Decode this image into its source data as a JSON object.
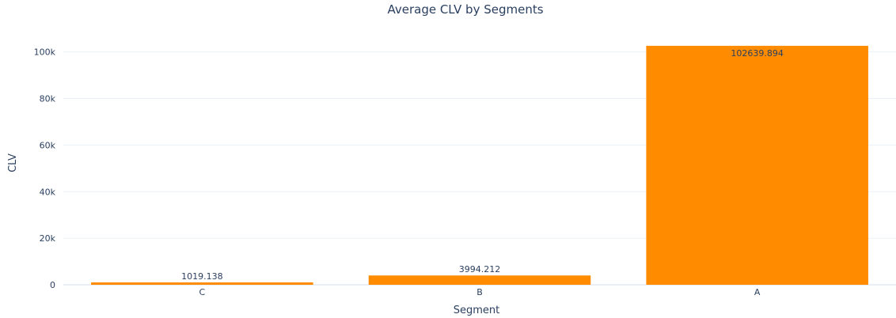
{
  "chart_data": {
    "type": "bar",
    "title": "Average CLV by Segments",
    "xlabel": "Segment",
    "ylabel": "CLV",
    "categories": [
      "C",
      "B",
      "A"
    ],
    "values": [
      1019.138,
      3994.212,
      102639.894
    ],
    "data_labels": [
      "1019.138",
      "3994.212",
      "102639.894"
    ],
    "ylim": [
      0,
      108042
    ],
    "yticks": [
      0,
      20000,
      40000,
      60000,
      80000,
      100000
    ],
    "ytick_labels": [
      "0",
      "20k",
      "40k",
      "60k",
      "80k",
      "100k"
    ],
    "bar_color": "#ff8c00",
    "grid": true,
    "legend": "none"
  }
}
